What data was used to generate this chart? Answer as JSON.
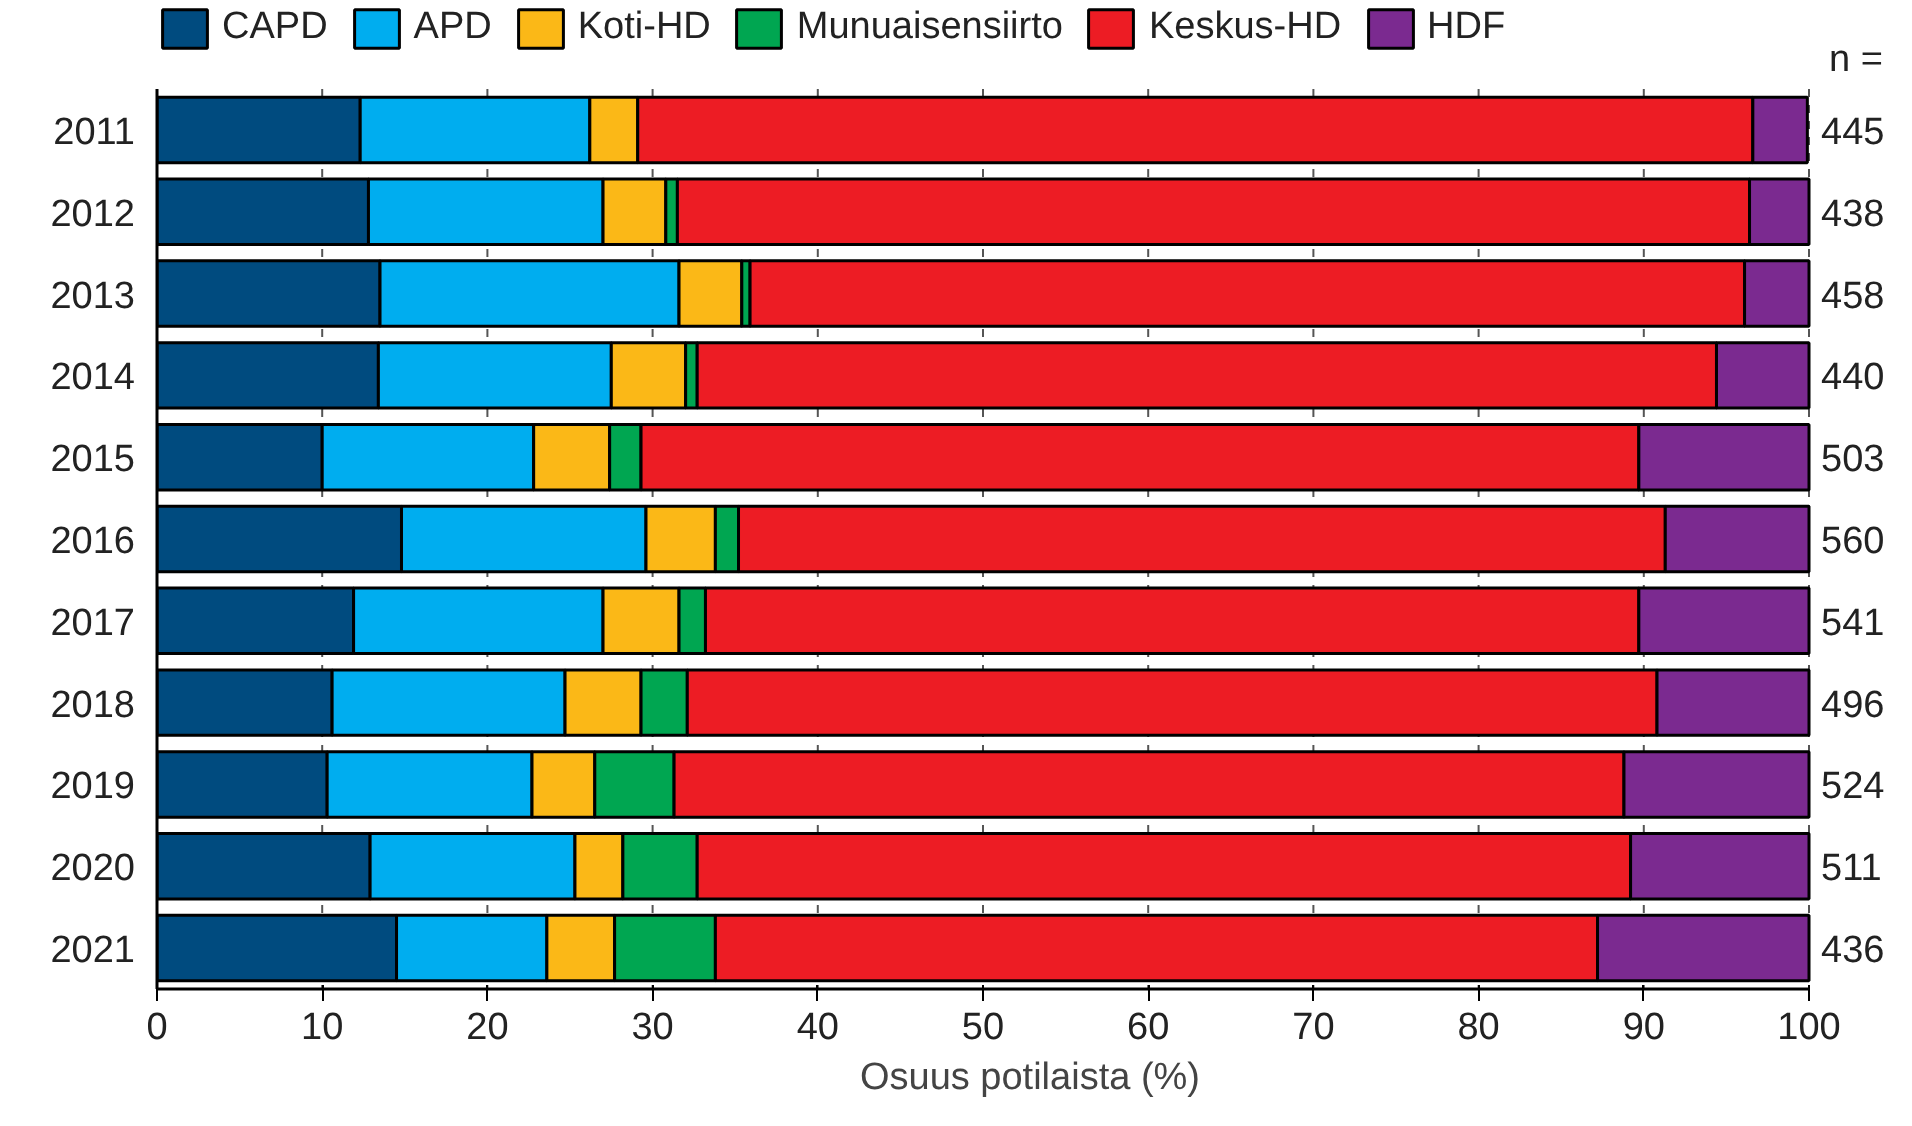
{
  "chart_data": {
    "type": "bar",
    "orientation": "horizontal",
    "stacked": true,
    "xlabel": "Osuus potilaista (%)",
    "categories": [
      "2011",
      "2012",
      "2013",
      "2014",
      "2015",
      "2016",
      "2017",
      "2018",
      "2019",
      "2020",
      "2021"
    ],
    "series": [
      {
        "name": "CAPD",
        "color": "#004b7f",
        "values": [
          12.3,
          12.8,
          13.5,
          13.4,
          10.0,
          14.8,
          11.9,
          10.6,
          10.3,
          12.9,
          14.5
        ]
      },
      {
        "name": "APD",
        "color": "#00adef",
        "values": [
          13.9,
          14.2,
          18.1,
          14.1,
          12.8,
          14.8,
          15.1,
          14.1,
          12.4,
          12.4,
          9.1
        ]
      },
      {
        "name": "Koti-HD",
        "color": "#fbb817",
        "values": [
          2.9,
          3.8,
          3.8,
          4.5,
          4.6,
          4.2,
          4.6,
          4.6,
          3.8,
          2.9,
          4.1
        ]
      },
      {
        "name": "Munuaisensiirto",
        "color": "#00a651",
        "values": [
          null,
          0.7,
          0.5,
          0.7,
          1.9,
          1.4,
          1.6,
          2.8,
          4.8,
          4.5,
          6.1
        ]
      },
      {
        "name": "Keskus-HD",
        "color": "#ed1c24",
        "values": [
          67.5,
          64.9,
          60.2,
          61.7,
          60.4,
          56.1,
          56.5,
          58.7,
          57.5,
          56.5,
          53.4
        ]
      },
      {
        "name": "HDF",
        "color": "#7b2a90",
        "values": [
          3.3,
          3.6,
          3.9,
          5.6,
          10.3,
          8.7,
          10.3,
          9.2,
          11.2,
          10.8,
          12.8
        ]
      }
    ],
    "xlim": [
      0,
      100
    ],
    "xticks": [
      0,
      10,
      20,
      30,
      40,
      50,
      60,
      70,
      80,
      90,
      100
    ],
    "grid": "x",
    "legend": "top",
    "annotations": [
      "n =",
      "445",
      "438",
      "458",
      "440",
      "503",
      "560",
      "541",
      "496",
      "524",
      "511",
      "436"
    ]
  }
}
